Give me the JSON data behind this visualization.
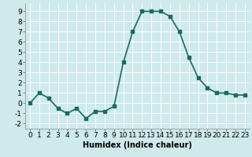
{
  "x": [
    0,
    1,
    2,
    3,
    4,
    5,
    6,
    7,
    8,
    9,
    10,
    11,
    12,
    13,
    14,
    15,
    16,
    17,
    18,
    19,
    20,
    21,
    22,
    23
  ],
  "y": [
    0.0,
    1.0,
    0.5,
    -0.5,
    -1.0,
    -0.5,
    -1.5,
    -0.8,
    -0.8,
    -0.3,
    4.0,
    7.0,
    9.0,
    9.0,
    9.0,
    8.5,
    7.0,
    4.5,
    2.5,
    1.5,
    1.0,
    1.0,
    0.8,
    0.8
  ],
  "xlabel": "Humidex (Indice chaleur)",
  "xlim": [
    -0.5,
    23.5
  ],
  "ylim": [
    -2.5,
    9.8
  ],
  "yticks": [
    -2,
    -1,
    0,
    1,
    2,
    3,
    4,
    5,
    6,
    7,
    8,
    9
  ],
  "xticks": [
    0,
    1,
    2,
    3,
    4,
    5,
    6,
    7,
    8,
    9,
    10,
    11,
    12,
    13,
    14,
    15,
    16,
    17,
    18,
    19,
    20,
    21,
    22,
    23
  ],
  "line_color": "#1a6b5a",
  "marker": "s",
  "marker_size": 2.5,
  "bg_color": "#ceeaea",
  "grid_color": "#b0d4d4",
  "xlabel_fontsize": 7,
  "tick_fontsize": 6.5,
  "line_width": 1.2
}
